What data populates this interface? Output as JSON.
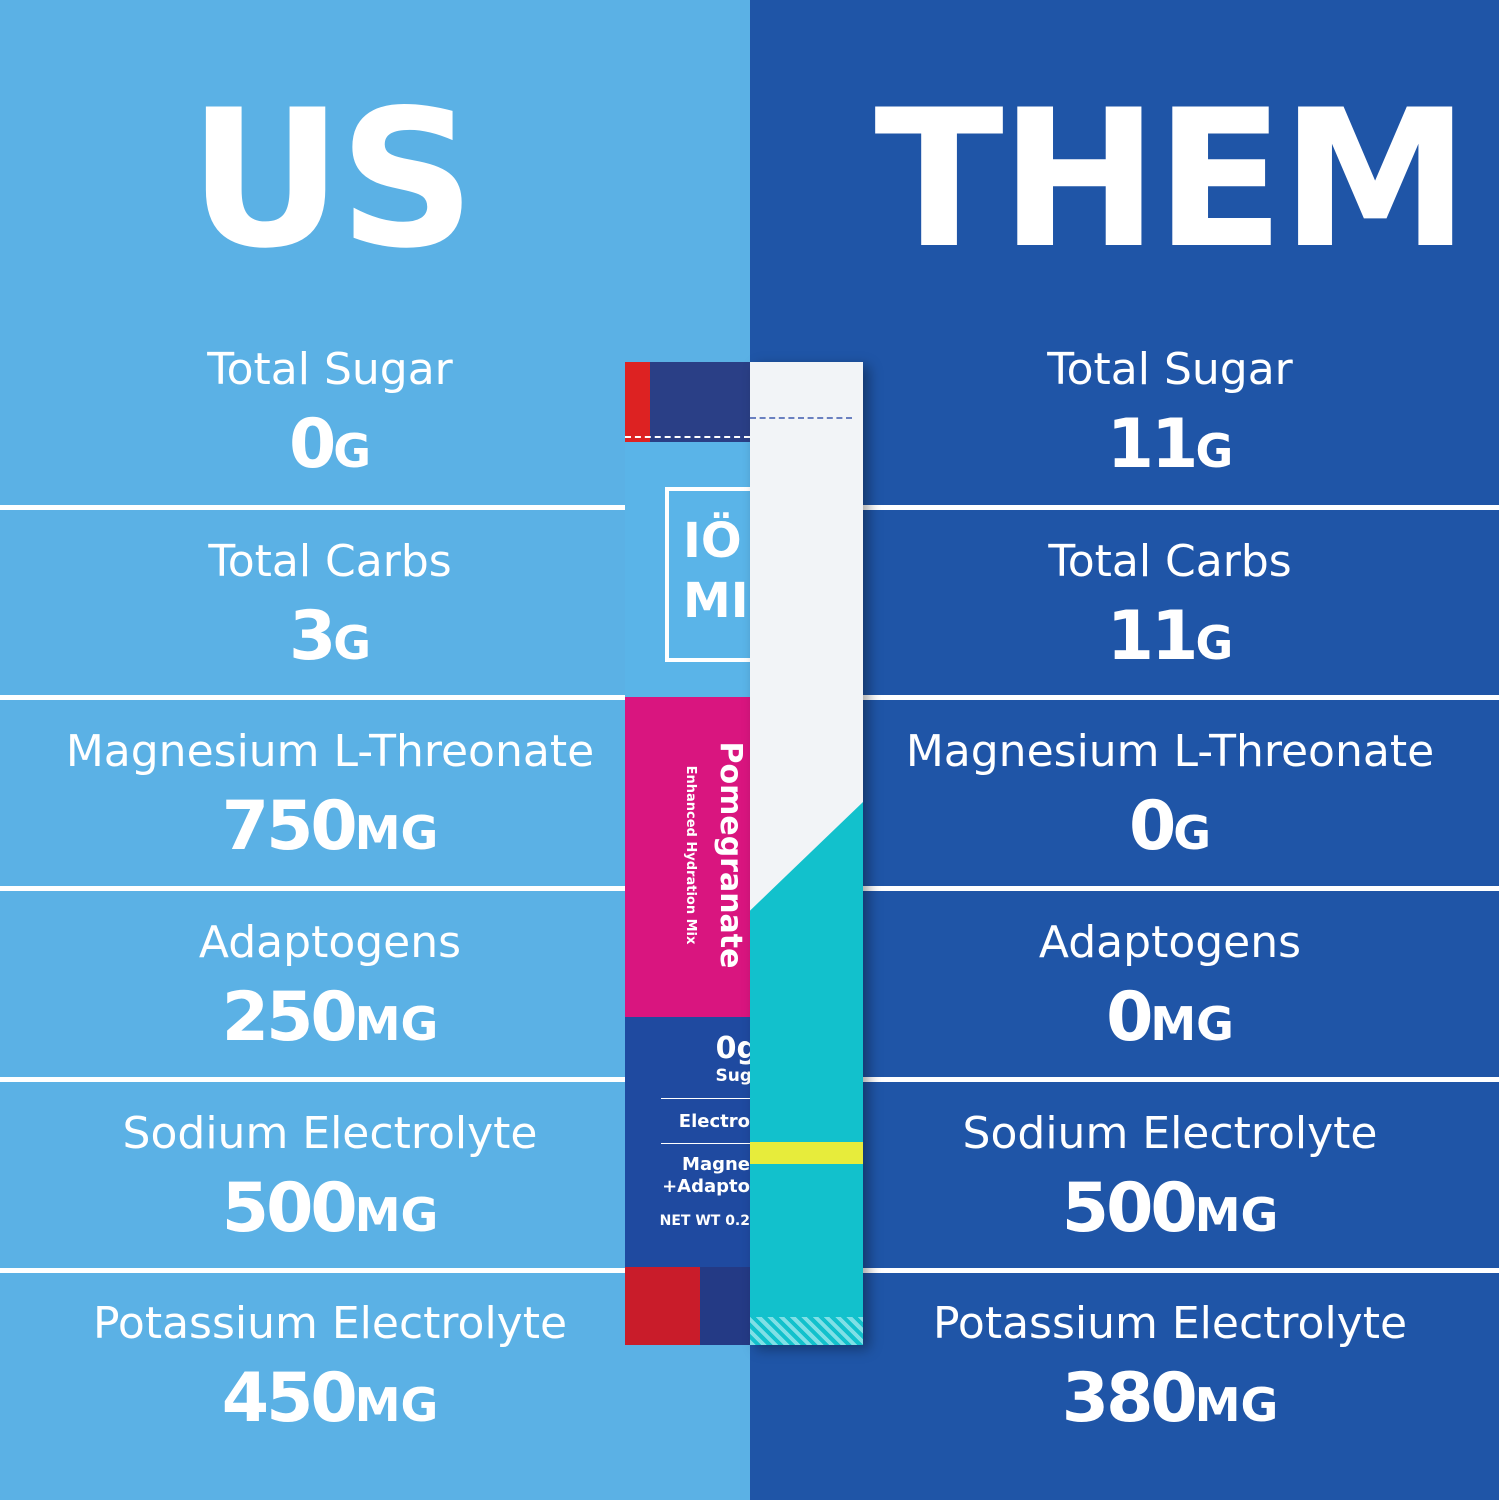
{
  "us": {
    "title": "US",
    "rows": [
      {
        "label": "Total Sugar",
        "value": "0",
        "unit": "G"
      },
      {
        "label": "Total Carbs",
        "value": "3",
        "unit": "G"
      },
      {
        "label": "Magnesium L-Threonate",
        "value": "750",
        "unit": "MG"
      },
      {
        "label": "Adaptogens",
        "value": "250",
        "unit": "MG"
      },
      {
        "label": "Sodium Electrolyte",
        "value": "500",
        "unit": "MG"
      },
      {
        "label": "Potassium Electrolyte",
        "value": "450",
        "unit": "MG"
      }
    ]
  },
  "them": {
    "title": "THEM",
    "rows": [
      {
        "label": "Total Sugar",
        "value": "11",
        "unit": "G"
      },
      {
        "label": "Total Carbs",
        "value": "11",
        "unit": "G"
      },
      {
        "label": "Magnesium L-Threonate",
        "value": "0",
        "unit": "G"
      },
      {
        "label": "Adaptogens",
        "value": "0",
        "unit": "MG"
      },
      {
        "label": "Sodium Electrolyte",
        "value": "500",
        "unit": "MG"
      },
      {
        "label": "Potassium Electrolyte",
        "value": "380",
        "unit": "MG"
      }
    ]
  },
  "packet": {
    "logo": "IÖ MI",
    "flavor": "Pomegranate",
    "subtitle": "Enhanced Hydration Mix",
    "sugar": "0g",
    "sugar_label": "Sug",
    "electro": "Electro",
    "magne": "Magne",
    "adapt": "+Adapto",
    "netwt": "NET WT 0.2"
  },
  "colors": {
    "us_bg": "#5bb1e5",
    "them_bg": "#1f55a7",
    "pink": "#d9157f",
    "teal": "#12c1cc"
  }
}
